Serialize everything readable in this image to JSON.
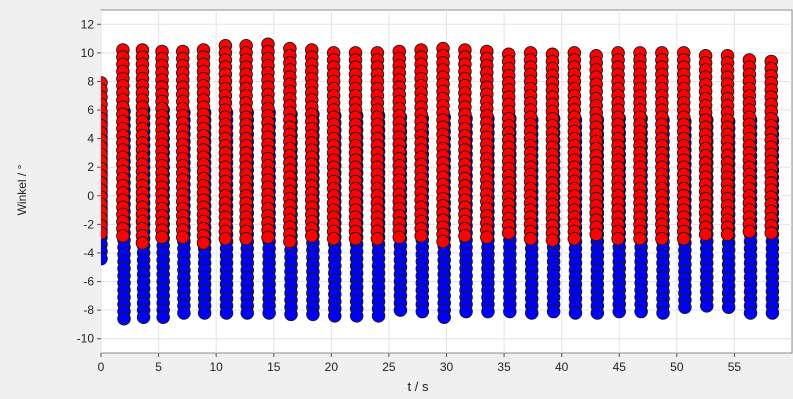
{
  "chart_data": {
    "type": "scatter",
    "xlabel": "t / s",
    "ylabel": "Winkel / °",
    "xlim": [
      0,
      60
    ],
    "ylim": [
      -11,
      13
    ],
    "x_ticks": [
      0,
      5,
      10,
      15,
      20,
      25,
      30,
      35,
      40,
      45,
      50,
      55
    ],
    "y_ticks": [
      -10,
      -8,
      -6,
      -4,
      -2,
      0,
      2,
      4,
      6,
      8,
      10,
      12
    ],
    "grid": true,
    "legend": "none",
    "point_spacing": 0.5,
    "series": [
      {
        "color": "#0000ff",
        "columns": [
          {
            "t": 0.0,
            "ymin": -4.6,
            "ymax": 5.6
          },
          {
            "t": 2.0,
            "ymin": -8.7,
            "ymax": 5.9
          },
          {
            "t": 3.7,
            "ymin": -8.7,
            "ymax": 6.0
          },
          {
            "t": 5.4,
            "ymin": -8.9,
            "ymax": 6.0
          },
          {
            "t": 7.2,
            "ymin": -8.6,
            "ymax": 5.8
          },
          {
            "t": 9.0,
            "ymin": -8.3,
            "ymax": 5.8
          },
          {
            "t": 10.9,
            "ymin": -8.2,
            "ymax": 5.8
          },
          {
            "t": 12.7,
            "ymin": -8.3,
            "ymax": 5.8
          },
          {
            "t": 14.6,
            "ymin": -8.2,
            "ymax": 5.8
          },
          {
            "t": 16.5,
            "ymin": -8.5,
            "ymax": 5.7
          },
          {
            "t": 18.4,
            "ymin": -8.6,
            "ymax": 5.7
          },
          {
            "t": 20.3,
            "ymin": -8.6,
            "ymax": 5.6
          },
          {
            "t": 22.2,
            "ymin": -8.4,
            "ymax": 5.6
          },
          {
            "t": 24.1,
            "ymin": -8.6,
            "ymax": 5.6
          },
          {
            "t": 26.0,
            "ymin": -8.3,
            "ymax": 5.5
          },
          {
            "t": 27.9,
            "ymin": -8.3,
            "ymax": 5.4
          },
          {
            "t": 29.8,
            "ymin": -8.5,
            "ymax": 5.5
          },
          {
            "t": 31.7,
            "ymin": -8.5,
            "ymax": 5.4
          },
          {
            "t": 33.6,
            "ymin": -8.5,
            "ymax": 5.4
          },
          {
            "t": 35.5,
            "ymin": -8.5,
            "ymax": 5.4
          },
          {
            "t": 37.4,
            "ymin": -8.4,
            "ymax": 5.3
          },
          {
            "t": 39.3,
            "ymin": -8.5,
            "ymax": 5.4
          },
          {
            "t": 41.2,
            "ymin": -8.6,
            "ymax": 5.3
          },
          {
            "t": 43.1,
            "ymin": -8.4,
            "ymax": 5.3
          },
          {
            "t": 45.0,
            "ymin": -8.4,
            "ymax": 5.4
          },
          {
            "t": 46.9,
            "ymin": -8.3,
            "ymax": 5.4
          },
          {
            "t": 48.8,
            "ymin": -8.2,
            "ymax": 5.3
          },
          {
            "t": 50.7,
            "ymin": -8.0,
            "ymax": 5.2
          },
          {
            "t": 52.6,
            "ymin": -8.1,
            "ymax": 5.3
          },
          {
            "t": 54.5,
            "ymin": -8.2,
            "ymax": 5.2
          },
          {
            "t": 56.4,
            "ymin": -8.3,
            "ymax": 5.3
          },
          {
            "t": 58.3,
            "ymin": -8.2,
            "ymax": 5.3
          }
        ]
      },
      {
        "color": "#ff0000",
        "columns": [
          {
            "t": 0.0,
            "ymin": -2.8,
            "ymax": 7.9
          },
          {
            "t": 1.9,
            "ymin": -3.2,
            "ymax": 10.2
          },
          {
            "t": 3.6,
            "ymin": -3.4,
            "ymax": 10.2
          },
          {
            "t": 5.3,
            "ymin": -3.3,
            "ymax": 10.1
          },
          {
            "t": 7.1,
            "ymin": -3.1,
            "ymax": 10.1
          },
          {
            "t": 8.9,
            "ymin": -3.3,
            "ymax": 10.2
          },
          {
            "t": 10.8,
            "ymin": -3.4,
            "ymax": 10.5
          },
          {
            "t": 12.6,
            "ymin": -3.4,
            "ymax": 10.5
          },
          {
            "t": 14.5,
            "ymin": -3.3,
            "ymax": 10.6
          },
          {
            "t": 16.4,
            "ymin": -3.2,
            "ymax": 10.3
          },
          {
            "t": 18.3,
            "ymin": -3.0,
            "ymax": 10.2
          },
          {
            "t": 20.2,
            "ymin": -3.3,
            "ymax": 10.0
          },
          {
            "t": 22.1,
            "ymin": -3.1,
            "ymax": 10.0
          },
          {
            "t": 24.0,
            "ymin": -3.1,
            "ymax": 10.0
          },
          {
            "t": 25.9,
            "ymin": -3.2,
            "ymax": 10.1
          },
          {
            "t": 27.8,
            "ymin": -3.0,
            "ymax": 10.2
          },
          {
            "t": 29.7,
            "ymin": -3.3,
            "ymax": 10.3
          },
          {
            "t": 31.6,
            "ymin": -3.2,
            "ymax": 10.2
          },
          {
            "t": 33.5,
            "ymin": -3.1,
            "ymax": 10.1
          },
          {
            "t": 35.4,
            "ymin": -3.0,
            "ymax": 9.9
          },
          {
            "t": 37.3,
            "ymin": -3.3,
            "ymax": 10.0
          },
          {
            "t": 39.2,
            "ymin": -3.2,
            "ymax": 9.9
          },
          {
            "t": 41.1,
            "ymin": -3.1,
            "ymax": 10.0
          },
          {
            "t": 43.0,
            "ymin": -3.1,
            "ymax": 9.8
          },
          {
            "t": 44.9,
            "ymin": -3.0,
            "ymax": 10.0
          },
          {
            "t": 46.8,
            "ymin": -3.0,
            "ymax": 10.0
          },
          {
            "t": 48.7,
            "ymin": -3.1,
            "ymax": 10.0
          },
          {
            "t": 50.6,
            "ymin": -3.0,
            "ymax": 10.0
          },
          {
            "t": 52.5,
            "ymin": -3.0,
            "ymax": 9.8
          },
          {
            "t": 54.4,
            "ymin": -3.0,
            "ymax": 9.8
          },
          {
            "t": 56.3,
            "ymin": -2.9,
            "ymax": 9.5
          },
          {
            "t": 58.2,
            "ymin": -2.8,
            "ymax": 9.4
          }
        ]
      }
    ]
  }
}
